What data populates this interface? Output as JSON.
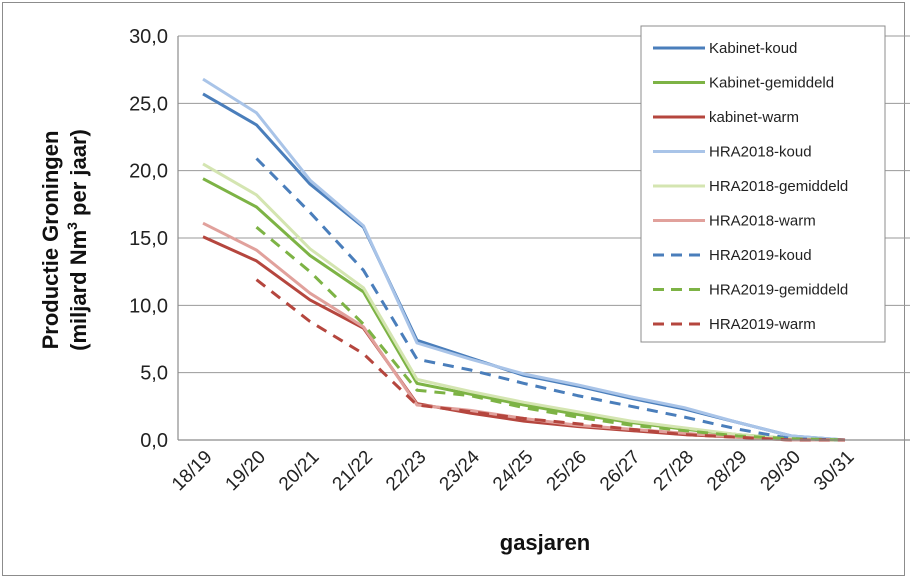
{
  "chart_data": {
    "type": "line",
    "xlabel": "gasjaren",
    "ylabel": "Productie Groningen",
    "ylabel_line2_prefix": "(miljard Nm",
    "ylabel_line2_sup": "3",
    "ylabel_line2_suffix": " per jaar)",
    "categories": [
      "18/19",
      "19/20",
      "20/21",
      "21/22",
      "22/23",
      "23/24",
      "24/25",
      "25/26",
      "26/27",
      "27/28",
      "28/29",
      "29/30",
      "30/31"
    ],
    "ylim": [
      0,
      30
    ],
    "yticks": [
      "0,0",
      "5,0",
      "10,0",
      "15,0",
      "20,0",
      "25,0",
      "30,0"
    ],
    "grid": "horizontal",
    "legend_position": "top-right",
    "series": [
      {
        "name": "Kabinet-koud",
        "color": "#4a7ebb",
        "dash": false,
        "values": [
          25.7,
          23.4,
          19.0,
          15.8,
          7.4,
          6.1,
          4.8,
          4.0,
          3.1,
          2.3,
          1.3,
          0.3,
          0.0
        ]
      },
      {
        "name": "Kabinet-gemiddeld",
        "color": "#7db345",
        "dash": false,
        "values": [
          19.4,
          17.3,
          13.7,
          11.0,
          4.2,
          3.4,
          2.6,
          1.9,
          1.3,
          0.8,
          0.4,
          0.1,
          0.0
        ]
      },
      {
        "name": "kabinet-warm",
        "color": "#b5463e",
        "dash": false,
        "values": [
          15.1,
          13.3,
          10.4,
          8.3,
          2.7,
          2.0,
          1.4,
          1.0,
          0.7,
          0.4,
          0.2,
          0.0,
          0.0
        ]
      },
      {
        "name": "HRA2018-koud",
        "color": "#a9c4e8",
        "dash": false,
        "values": [
          26.8,
          24.3,
          19.3,
          15.9,
          7.2,
          6.0,
          4.9,
          4.1,
          3.2,
          2.4,
          1.3,
          0.3,
          0.0
        ]
      },
      {
        "name": "HRA2018-gemiddeld",
        "color": "#d4e5b1",
        "dash": false,
        "values": [
          20.5,
          18.2,
          14.2,
          11.3,
          4.5,
          3.6,
          2.8,
          2.1,
          1.4,
          0.9,
          0.4,
          0.1,
          0.0
        ]
      },
      {
        "name": "HRA2018-warm",
        "color": "#e1a19c",
        "dash": false,
        "values": [
          16.1,
          14.1,
          10.9,
          8.4,
          2.6,
          2.2,
          1.6,
          1.1,
          0.8,
          0.5,
          0.2,
          0.0,
          0.0
        ]
      },
      {
        "name": "HRA2019-koud",
        "color": "#4a7ebb",
        "dash": true,
        "values": [
          null,
          20.9,
          16.9,
          12.6,
          6.0,
          5.2,
          4.2,
          3.3,
          2.5,
          1.7,
          0.8,
          0.1,
          0.0
        ]
      },
      {
        "name": "HRA2019-gemiddeld",
        "color": "#7db345",
        "dash": true,
        "values": [
          null,
          15.8,
          12.5,
          8.6,
          3.7,
          3.3,
          2.4,
          1.7,
          1.1,
          0.7,
          0.3,
          0.1,
          0.0
        ]
      },
      {
        "name": "HRA2019-warm",
        "color": "#b5463e",
        "dash": true,
        "values": [
          null,
          11.9,
          8.8,
          6.4,
          2.6,
          2.1,
          1.6,
          1.2,
          0.8,
          0.4,
          0.2,
          0.0,
          0.0
        ]
      }
    ]
  }
}
